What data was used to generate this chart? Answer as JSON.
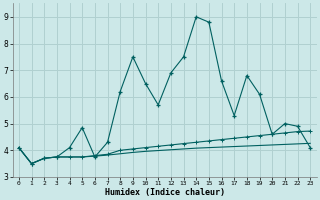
{
  "xlabel": "Humidex (Indice chaleur)",
  "bg_color": "#cce8e8",
  "grid_color": "#b0d0d0",
  "line_color": "#006060",
  "x_series": [
    0,
    1,
    2,
    3,
    4,
    5,
    6,
    7,
    8,
    9,
    10,
    11,
    12,
    13,
    14,
    15,
    16,
    17,
    18,
    19,
    20,
    21,
    22,
    23
  ],
  "line1": [
    4.1,
    3.5,
    3.7,
    3.75,
    4.1,
    4.85,
    3.75,
    4.3,
    6.2,
    7.5,
    6.5,
    5.7,
    6.9,
    7.5,
    9.0,
    8.8,
    6.6,
    5.3,
    6.8,
    6.1,
    4.6,
    5.0,
    4.9,
    4.1
  ],
  "line2": [
    4.1,
    3.5,
    3.7,
    3.75,
    3.75,
    3.75,
    3.8,
    3.85,
    4.0,
    4.05,
    4.1,
    4.15,
    4.2,
    4.25,
    4.3,
    4.35,
    4.4,
    4.45,
    4.5,
    4.55,
    4.6,
    4.65,
    4.7,
    4.72
  ],
  "line4": [
    4.1,
    3.5,
    3.7,
    3.75,
    3.75,
    3.75,
    3.78,
    3.82,
    3.87,
    3.92,
    3.96,
    3.99,
    4.02,
    4.05,
    4.08,
    4.1,
    4.12,
    4.14,
    4.16,
    4.18,
    4.2,
    4.22,
    4.24,
    4.26
  ],
  "ylim": [
    3.0,
    9.5
  ],
  "xlim": [
    -0.5,
    23.5
  ],
  "xticks": [
    0,
    1,
    2,
    3,
    4,
    5,
    6,
    7,
    8,
    9,
    10,
    11,
    12,
    13,
    14,
    15,
    16,
    17,
    18,
    19,
    20,
    21,
    22,
    23
  ],
  "yticks": [
    3,
    4,
    5,
    6,
    7,
    8,
    9
  ]
}
